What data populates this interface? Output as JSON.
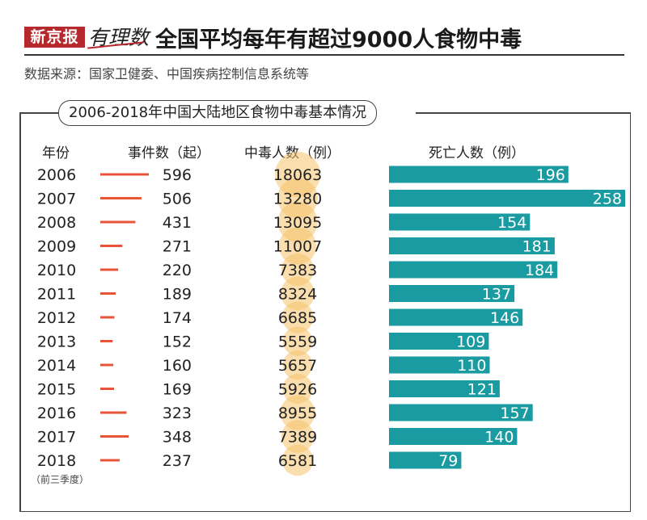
{
  "header": {
    "brand": "新京报",
    "brand_sub": "有理数",
    "title": "全国平均每年有超过9000人食物中毒",
    "source": "数据来源：国家卫健委、中国疾病控制信息系统等"
  },
  "chart_data": {
    "type": "table",
    "title": "2006-2018年中国大陆地区食物中毒基本情况",
    "columns": [
      "年份",
      "事件数（起）",
      "中毒人数（例）",
      "死亡人数（例）"
    ],
    "years": [
      "2006",
      "2007",
      "2008",
      "2009",
      "2010",
      "2011",
      "2012",
      "2013",
      "2014",
      "2015",
      "2016",
      "2017",
      "2018"
    ],
    "note": "（前三季度）",
    "series": [
      {
        "name": "事件数（起）",
        "values": [
          596,
          506,
          431,
          271,
          220,
          189,
          174,
          152,
          160,
          169,
          323,
          348,
          237
        ]
      },
      {
        "name": "中毒人数（例）",
        "values": [
          18063,
          13280,
          13095,
          11007,
          7383,
          8324,
          6685,
          5559,
          5657,
          5926,
          8955,
          7389,
          6581
        ]
      },
      {
        "name": "死亡人数（例）",
        "values": [
          196,
          258,
          154,
          181,
          184,
          137,
          146,
          109,
          110,
          121,
          157,
          140,
          79
        ]
      }
    ],
    "colors": {
      "events": "#e8543a",
      "poisoned": "#f5c26b",
      "deaths": "#1a9ba1"
    }
  }
}
